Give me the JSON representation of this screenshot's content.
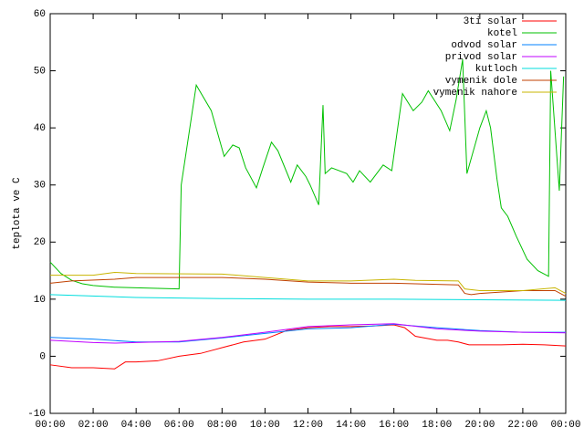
{
  "chart_data": {
    "type": "line",
    "y_label": "teplota ve C",
    "xlim": [
      0,
      24
    ],
    "xticks": [
      {
        "value": 0,
        "label": "00:00"
      },
      {
        "value": 2,
        "label": "02:00"
      },
      {
        "value": 4,
        "label": "04:00"
      },
      {
        "value": 6,
        "label": "06:00"
      },
      {
        "value": 8,
        "label": "08:00"
      },
      {
        "value": 10,
        "label": "10:00"
      },
      {
        "value": 12,
        "label": "12:00"
      },
      {
        "value": 14,
        "label": "14:00"
      },
      {
        "value": 16,
        "label": "16:00"
      },
      {
        "value": 18,
        "label": "18:00"
      },
      {
        "value": 20,
        "label": "20:00"
      },
      {
        "value": 22,
        "label": "22:00"
      },
      {
        "value": 24,
        "label": "00:00"
      }
    ],
    "ylim": [
      -10,
      60
    ],
    "yticks": [
      -10,
      0,
      10,
      20,
      30,
      40,
      50,
      60
    ],
    "legend": "top-right",
    "series": [
      {
        "name": "3ti solar",
        "color": "#ff0000",
        "x": [
          0,
          1,
          2,
          3,
          3.5,
          4,
          5,
          6,
          7,
          8,
          9,
          10,
          11,
          12,
          13,
          14,
          15,
          16,
          16.5,
          17,
          18,
          18.5,
          19,
          19.5,
          20,
          21,
          22,
          23,
          24
        ],
        "values": [
          -1.5,
          -2,
          -2,
          -2.2,
          -1,
          -1,
          -0.8,
          0,
          0.5,
          1.5,
          2.5,
          3,
          4.5,
          5,
          5.2,
          5.2,
          5.3,
          5.5,
          5,
          3.5,
          2.8,
          2.8,
          2.5,
          2,
          2,
          2,
          2.1,
          2,
          1.8
        ]
      },
      {
        "name": "kotel",
        "color": "#00c000",
        "x": [
          0,
          0.5,
          1,
          1.5,
          2,
          3,
          4,
          5,
          6,
          6.1,
          6.5,
          6.8,
          7.5,
          8.1,
          8.5,
          8.8,
          9.1,
          9.6,
          9.9,
          10.3,
          10.6,
          11.2,
          11.5,
          11.9,
          12.1,
          12.5,
          12.7,
          12.8,
          13.1,
          13.8,
          14.1,
          14.4,
          14.9,
          15.5,
          15.9,
          16.4,
          16.9,
          17.3,
          17.6,
          18.2,
          18.6,
          18.9,
          19.2,
          19.4,
          20,
          20.3,
          20.5,
          20.8,
          21,
          21.3,
          21.7,
          22.2,
          22.7,
          23.2,
          23.3,
          23.7,
          23.9
        ],
        "values": [
          16.5,
          14.5,
          13.3,
          12.7,
          12.4,
          12.1,
          12,
          11.9,
          11.8,
          30,
          40,
          47.5,
          43,
          35,
          37,
          36.5,
          33,
          29.5,
          33,
          37.5,
          36,
          30.5,
          33.5,
          31.5,
          30,
          26.5,
          44,
          32,
          33,
          32,
          30.5,
          32.5,
          30.5,
          33.5,
          32.5,
          46,
          43,
          44.5,
          46.5,
          43,
          39.5,
          45,
          52,
          32,
          40,
          43,
          40,
          31,
          26,
          24.5,
          21,
          17,
          15,
          14,
          50,
          29,
          49
        ]
      },
      {
        "name": "odvod solar",
        "color": "#0080ff",
        "x": [
          0,
          2,
          4,
          6,
          8,
          10,
          12,
          14,
          16,
          18,
          20,
          22,
          24
        ],
        "values": [
          3.3,
          3,
          2.5,
          2.5,
          3.2,
          4,
          4.8,
          5,
          5.6,
          5,
          4.5,
          4.2,
          4.2
        ]
      },
      {
        "name": "privod solar",
        "color": "#c000ff",
        "x": [
          0,
          2,
          3,
          4,
          6,
          8,
          10,
          12,
          14,
          16,
          18,
          20,
          22,
          24
        ],
        "values": [
          2.8,
          2.4,
          2.3,
          2.4,
          2.6,
          3.3,
          4.2,
          5.2,
          5.5,
          5.7,
          4.8,
          4.4,
          4.2,
          4.1
        ]
      },
      {
        "name": "kutloch",
        "color": "#00dddd",
        "x": [
          0,
          4,
          8,
          12,
          16,
          20,
          24
        ],
        "values": [
          10.8,
          10.3,
          10.1,
          10,
          10,
          9.9,
          9.8
        ]
      },
      {
        "name": "vymenik dole",
        "color": "#c04000",
        "x": [
          0,
          1,
          3,
          4,
          8,
          10,
          12,
          14,
          16,
          18,
          19,
          19.3,
          19.6,
          20,
          22,
          23.5,
          24
        ],
        "values": [
          12.8,
          13.2,
          13.5,
          13.8,
          13.8,
          13.5,
          13,
          12.8,
          12.8,
          12.6,
          12.5,
          11,
          10.8,
          11,
          11.5,
          11.5,
          10.5
        ]
      },
      {
        "name": "vymenik nahore",
        "color": "#c8b400",
        "x": [
          0,
          2,
          3,
          4,
          8,
          10,
          12,
          14,
          16,
          17,
          19,
          19.3,
          20,
          22,
          23.5,
          24
        ],
        "values": [
          14.2,
          14.2,
          14.7,
          14.5,
          14.4,
          13.8,
          13.2,
          13.2,
          13.5,
          13.3,
          13.2,
          11.8,
          11.5,
          11.5,
          12,
          11
        ]
      }
    ]
  }
}
